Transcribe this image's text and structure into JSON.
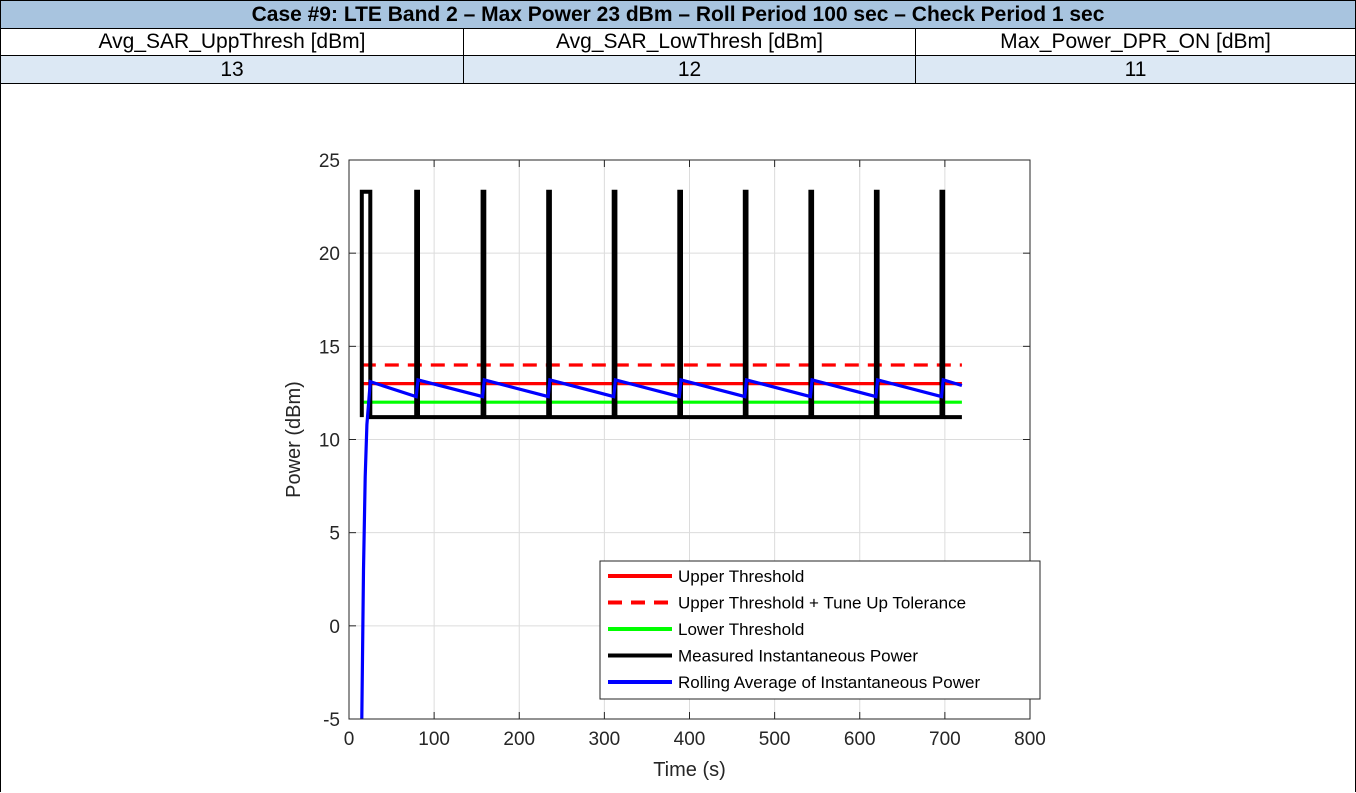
{
  "header": {
    "title": "Case #9: LTE Band 2 – Max Power 23 dBm – Roll Period 100 sec – Check Period 1 sec",
    "columns": [
      "Avg_SAR_UppThresh [dBm]",
      "Avg_SAR_LowThresh [dBm]",
      "Max_Power_DPR_ON [dBm]"
    ],
    "values": [
      "13",
      "12",
      "11"
    ]
  },
  "colors": {
    "title_bg": "#a8c4df",
    "value_bg": "#dce8f4",
    "upper": "#ff0000",
    "lower": "#00ff00",
    "measured": "#000000",
    "rolling": "#0000ff"
  },
  "chart_data": {
    "type": "line",
    "xlabel": "Time (s)",
    "ylabel": "Power (dBm)",
    "xlim": [
      0,
      800
    ],
    "ylim": [
      -5,
      25
    ],
    "xticks": [
      0,
      100,
      200,
      300,
      400,
      500,
      600,
      700,
      800
    ],
    "yticks": [
      -5,
      0,
      5,
      10,
      15,
      20,
      25
    ],
    "grid": true,
    "legend_position": "bottom-right",
    "series": [
      {
        "name": "Upper Threshold",
        "style": "solid",
        "color": "#ff0000",
        "x": [
          15,
          720
        ],
        "y": [
          13,
          13
        ]
      },
      {
        "name": "Upper Threshold + Tune Up Tolerance",
        "style": "dashed",
        "color": "#ff0000",
        "x": [
          15,
          720
        ],
        "y": [
          14,
          14
        ]
      },
      {
        "name": "Lower Threshold",
        "style": "solid",
        "color": "#00ff00",
        "x": [
          15,
          720
        ],
        "y": [
          12,
          12
        ]
      },
      {
        "name": "Measured Instantaneous Power",
        "style": "solid",
        "color": "#000000",
        "x": [
          15,
          15,
          25,
          25,
          79,
          79,
          81,
          81,
          157,
          157,
          159,
          159,
          234,
          234,
          236,
          236,
          311,
          311,
          313,
          313,
          388,
          388,
          390,
          390,
          465,
          465,
          467,
          467,
          542,
          542,
          544,
          544,
          619,
          619,
          621,
          621,
          696,
          696,
          698,
          698,
          720
        ],
        "y": [
          11.2,
          23.3,
          23.3,
          11.2,
          11.2,
          23.3,
          23.3,
          11.2,
          11.2,
          23.3,
          23.3,
          11.2,
          11.2,
          23.3,
          23.3,
          11.2,
          11.2,
          23.3,
          23.3,
          11.2,
          11.2,
          23.3,
          23.3,
          11.2,
          11.2,
          23.3,
          23.3,
          11.2,
          11.2,
          23.3,
          23.3,
          11.2,
          11.2,
          23.3,
          23.3,
          11.2,
          11.2,
          23.3,
          23.3,
          11.2,
          11.2
        ]
      },
      {
        "name": "Rolling Average of Instantaneous Power",
        "style": "solid",
        "color": "#0000ff",
        "x": [
          15,
          17,
          19,
          21,
          25,
          79,
          81,
          157,
          159,
          234,
          236,
          311,
          313,
          388,
          390,
          465,
          467,
          542,
          544,
          619,
          621,
          696,
          698,
          720
        ],
        "y": [
          -5,
          3,
          8,
          10.8,
          13.1,
          12.3,
          13.2,
          12.3,
          13.2,
          12.3,
          13.2,
          12.3,
          13.2,
          12.3,
          13.2,
          12.3,
          13.2,
          12.3,
          13.2,
          12.3,
          13.2,
          12.3,
          13.2,
          12.9
        ]
      }
    ]
  }
}
